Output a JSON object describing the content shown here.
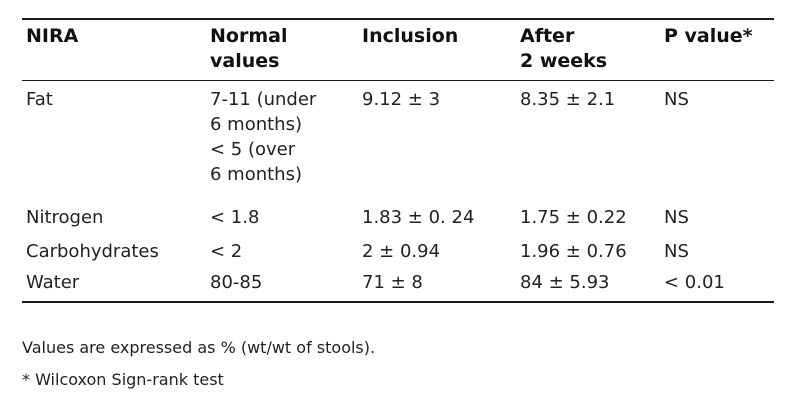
{
  "table": {
    "headers": [
      [
        "NIRA"
      ],
      [
        "Normal",
        "values"
      ],
      [
        "Inclusion"
      ],
      [
        "After",
        "2 weeks"
      ],
      [
        "P value*"
      ]
    ],
    "rows": [
      {
        "name": [
          "Fat"
        ],
        "normal": [
          "7-11 (under",
          "6 months)",
          "< 5 (over",
          "6 months)"
        ],
        "inclusion": [
          "9.12 ± 3"
        ],
        "after": [
          "8.35 ± 2.1"
        ],
        "p": [
          "NS"
        ]
      },
      {
        "name": [
          "Nitrogen"
        ],
        "normal": [
          "< 1.8"
        ],
        "inclusion": [
          "1.83 ± 0. 24"
        ],
        "after": [
          "1.75 ± 0.22"
        ],
        "p": [
          "NS"
        ]
      },
      {
        "name": [
          "Carbohydrates"
        ],
        "normal": [
          "< 2"
        ],
        "inclusion": [
          "2 ± 0.94"
        ],
        "after": [
          "1.96 ± 0.76"
        ],
        "p": [
          "NS"
        ]
      },
      {
        "name": [
          "Water"
        ],
        "normal": [
          "80-85"
        ],
        "inclusion": [
          "71 ± 8"
        ],
        "after": [
          "84 ± 5.93"
        ],
        "p": [
          "< 0.01"
        ]
      }
    ]
  },
  "footnotes": [
    "Values are expressed as % (wt/wt of stools).",
    "* Wilcoxon Sign-rank test"
  ]
}
